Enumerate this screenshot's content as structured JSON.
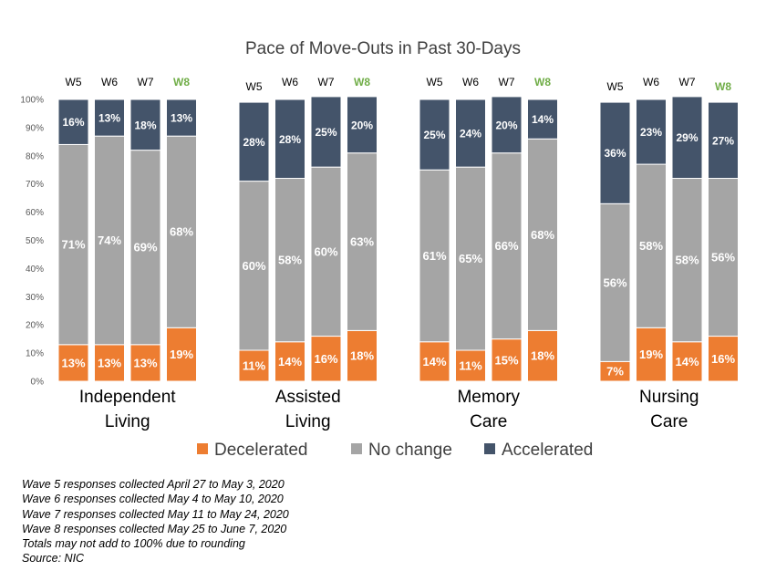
{
  "chart_data": {
    "type": "bar",
    "stacked": true,
    "title": "Pace of Move-Outs in Past 30-Days",
    "ylim": [
      0,
      100
    ],
    "y_ticks": [
      "0%",
      "10%",
      "20%",
      "30%",
      "40%",
      "50%",
      "60%",
      "70%",
      "80%",
      "90%",
      "100%"
    ],
    "grid": false,
    "legend_position": "bottom",
    "highlight_color": "#70AD47",
    "series": [
      {
        "name": "Decelerated",
        "color": "#ED7D31"
      },
      {
        "name": "No change",
        "color": "#A5A5A5"
      },
      {
        "name": "Accelerated",
        "color": "#44546A"
      }
    ],
    "groups": [
      {
        "label_lines": [
          "Independent",
          "Living"
        ],
        "bars": [
          {
            "wave": "W5",
            "highlight": false,
            "values": [
              13,
              71,
              16
            ]
          },
          {
            "wave": "W6",
            "highlight": false,
            "values": [
              13,
              74,
              13
            ]
          },
          {
            "wave": "W7",
            "highlight": false,
            "values": [
              13,
              69,
              18
            ]
          },
          {
            "wave": "W8",
            "highlight": true,
            "values": [
              19,
              68,
              13
            ]
          }
        ]
      },
      {
        "label_lines": [
          "Assisted",
          "Living"
        ],
        "bars": [
          {
            "wave": "W5",
            "highlight": false,
            "values": [
              11,
              60,
              28
            ]
          },
          {
            "wave": "W6",
            "highlight": false,
            "values": [
              14,
              58,
              28
            ]
          },
          {
            "wave": "W7",
            "highlight": false,
            "values": [
              16,
              60,
              25
            ]
          },
          {
            "wave": "W8",
            "highlight": true,
            "values": [
              18,
              63,
              20
            ]
          }
        ]
      },
      {
        "label_lines": [
          "Memory",
          "Care"
        ],
        "bars": [
          {
            "wave": "W5",
            "highlight": false,
            "values": [
              14,
              61,
              25
            ]
          },
          {
            "wave": "W6",
            "highlight": false,
            "values": [
              11,
              65,
              24
            ]
          },
          {
            "wave": "W7",
            "highlight": false,
            "values": [
              15,
              66,
              20
            ]
          },
          {
            "wave": "W8",
            "highlight": true,
            "values": [
              18,
              68,
              14
            ]
          }
        ]
      },
      {
        "label_lines": [
          "Nursing",
          "Care"
        ],
        "bars": [
          {
            "wave": "W5",
            "highlight": false,
            "values": [
              7,
              56,
              36
            ]
          },
          {
            "wave": "W6",
            "highlight": false,
            "values": [
              19,
              58,
              23
            ]
          },
          {
            "wave": "W7",
            "highlight": false,
            "values": [
              14,
              58,
              29
            ]
          },
          {
            "wave": "W8",
            "highlight": true,
            "values": [
              16,
              56,
              27
            ]
          }
        ]
      }
    ]
  },
  "notes": [
    "Wave 5 responses collected April 27 to May 3, 2020",
    "Wave 6 responses collected May 4 to May 10, 2020",
    "Wave 7 responses collected May 11 to May 24, 2020",
    "Wave 8 responses collected May 25 to June 7, 2020",
    "Totals may not add to 100% due to rounding",
    "Source: NIC"
  ]
}
